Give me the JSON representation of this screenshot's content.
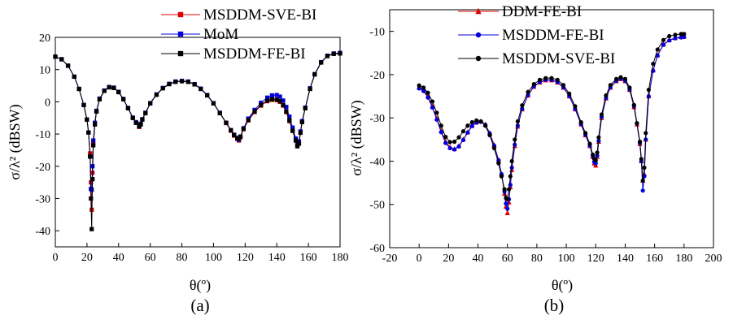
{
  "chart_data": [
    {
      "type": "scatter",
      "panel_label": "(a)",
      "xlabel": "θ(º)",
      "ylabel": "σ/λ² (dBSW)",
      "xlim": [
        0,
        180
      ],
      "ylim": [
        -45,
        20
      ],
      "xticks": [
        0,
        20,
        40,
        60,
        80,
        100,
        120,
        140,
        160,
        180
      ],
      "yticks": [
        -40,
        -30,
        -20,
        -10,
        0,
        10,
        20
      ],
      "legend_position": "top-center",
      "series": [
        {
          "name": "MSDDM-SVE-BI",
          "color": "#e00000",
          "marker": "square",
          "x": [
            0,
            4,
            8,
            12,
            15,
            18,
            20,
            21,
            22,
            22.5,
            23,
            23.5,
            24,
            25,
            26,
            28,
            31,
            34,
            37,
            40,
            43,
            46,
            49,
            51,
            53,
            54,
            55,
            57,
            60,
            64,
            68,
            72,
            76,
            80,
            84,
            88,
            92,
            96,
            100,
            104,
            108,
            111,
            113,
            115,
            116,
            117,
            119,
            122,
            126,
            130,
            134,
            137,
            140,
            142,
            144,
            146,
            148,
            150,
            152,
            153,
            154,
            155,
            156,
            158,
            161,
            164,
            168,
            172,
            176,
            180
          ],
          "y": [
            14,
            13.2,
            11.2,
            7.8,
            4,
            -1,
            -5.5,
            -9.5,
            -16,
            -25,
            -33.5,
            -22,
            -13,
            -7,
            -3,
            0.8,
            3.4,
            4.5,
            4.3,
            3,
            0.8,
            -2,
            -5,
            -6.5,
            -7.8,
            -7,
            -5.5,
            -3.5,
            -0.5,
            2.2,
            4.2,
            5.5,
            6.2,
            6.4,
            6.2,
            5.4,
            4,
            2,
            -0.5,
            -3.5,
            -6.6,
            -9,
            -10.5,
            -11.5,
            -12,
            -11,
            -8.5,
            -5.8,
            -3.2,
            -1.2,
            0.2,
            0.6,
            0.5,
            0,
            -1.2,
            -3.2,
            -6,
            -9,
            -12,
            -13.5,
            -12.8,
            -9.5,
            -6.3,
            -2,
            4,
            8.5,
            12.2,
            14.2,
            14.9,
            15
          ]
        },
        {
          "name": "MoM",
          "color": "#0000e0",
          "marker": "square",
          "x": [
            0,
            4,
            8,
            12,
            15,
            18,
            20,
            21,
            22,
            22.5,
            23,
            23.5,
            24,
            25,
            26,
            28,
            31,
            34,
            37,
            40,
            43,
            46,
            49,
            51,
            53,
            54,
            55,
            57,
            60,
            64,
            68,
            72,
            76,
            80,
            84,
            88,
            92,
            96,
            100,
            104,
            108,
            111,
            113,
            115,
            116,
            117,
            119,
            122,
            126,
            130,
            134,
            137,
            140,
            142,
            144,
            146,
            148,
            150,
            152,
            153,
            154,
            155,
            156,
            158,
            161,
            164,
            168,
            172,
            176,
            180
          ],
          "y": [
            14,
            13.2,
            11.2,
            7.8,
            4,
            -1,
            -5.5,
            -9.5,
            -17,
            -27,
            -27.3,
            -20,
            -12,
            -6.5,
            -2.8,
            1,
            3.5,
            4.6,
            4.4,
            3.1,
            0.9,
            -1.9,
            -4.9,
            -6.3,
            -7.3,
            -6.8,
            -5.4,
            -3.4,
            -0.4,
            2.3,
            4.3,
            5.6,
            6.3,
            6.5,
            6.3,
            5.5,
            4.1,
            2.1,
            -0.4,
            -3.4,
            -6.5,
            -8.8,
            -10.2,
            -11.2,
            -11.8,
            -10.8,
            -8.2,
            -5.2,
            -2.5,
            -0.3,
            1.3,
            2,
            2.1,
            1.6,
            0.4,
            -1.6,
            -4.6,
            -8,
            -11.4,
            -13,
            -12.3,
            -9.2,
            -6,
            -1.8,
            4.2,
            8.6,
            12.3,
            14.3,
            15,
            15.2
          ]
        },
        {
          "name": "MSDDM-FE-BI",
          "color": "#000000",
          "marker": "square",
          "x": [
            0,
            4,
            8,
            12,
            15,
            18,
            20,
            21,
            22,
            22.5,
            23,
            23.5,
            24,
            25,
            26,
            28,
            31,
            34,
            37,
            40,
            43,
            46,
            49,
            51,
            53,
            54,
            55,
            57,
            60,
            64,
            68,
            72,
            76,
            80,
            84,
            88,
            92,
            96,
            100,
            104,
            108,
            111,
            113,
            115,
            116,
            117,
            119,
            122,
            126,
            130,
            134,
            137,
            140,
            142,
            144,
            146,
            148,
            150,
            152,
            153,
            154,
            155,
            156,
            158,
            161,
            164,
            168,
            172,
            176,
            180
          ],
          "y": [
            14,
            13.2,
            11.2,
            7.8,
            4,
            -1,
            -5.5,
            -9.5,
            -17,
            -30,
            -39.5,
            -24,
            -13.5,
            -7,
            -3,
            0.8,
            3.4,
            4.5,
            4.3,
            3,
            0.8,
            -2,
            -5,
            -6.5,
            -7.6,
            -7,
            -5.5,
            -3.5,
            -0.5,
            2.2,
            4.2,
            5.5,
            6.2,
            6.4,
            6.2,
            5.4,
            4,
            2,
            -0.5,
            -3.5,
            -6.5,
            -8.8,
            -10.3,
            -11.3,
            -11.5,
            -10.8,
            -8.4,
            -5.6,
            -3,
            -1,
            0.4,
            0.8,
            0.7,
            0.2,
            -1,
            -3,
            -5.8,
            -9,
            -12,
            -13.8,
            -13,
            -9.6,
            -6.3,
            -2,
            4,
            8.5,
            12.2,
            14.2,
            14.9,
            15
          ]
        }
      ]
    },
    {
      "type": "scatter",
      "panel_label": "(b)",
      "xlabel": "θ(º)",
      "ylabel": "σ/λ² (dBSW)",
      "xlim": [
        -20,
        200
      ],
      "ylim": [
        -60,
        -5
      ],
      "xticks": [
        -20,
        0,
        20,
        40,
        60,
        80,
        100,
        120,
        140,
        160,
        180,
        200
      ],
      "yticks": [
        -60,
        -50,
        -40,
        -30,
        -20,
        -10
      ],
      "legend_position": "top-center",
      "series": [
        {
          "name": "DDM-FE-BI",
          "color": "#e00000",
          "marker": "triangle",
          "x": [
            0,
            3,
            6,
            9,
            12,
            15,
            18,
            21,
            24,
            27,
            30,
            33,
            36,
            39,
            42,
            45,
            48,
            51,
            54,
            56,
            58,
            59,
            60,
            61,
            62,
            63,
            65,
            67,
            70,
            74,
            78,
            82,
            86,
            90,
            94,
            98,
            102,
            106,
            110,
            113,
            116,
            118,
            119,
            120,
            121,
            122,
            124,
            127,
            130,
            134,
            137,
            140,
            143,
            146,
            148,
            150,
            151,
            152,
            153,
            154,
            156,
            159,
            162,
            166,
            170,
            174,
            178,
            180
          ],
          "y": [
            -23,
            -23.5,
            -25,
            -27.3,
            -30.1,
            -33,
            -35.5,
            -36.8,
            -37.2,
            -36.5,
            -35,
            -33.3,
            -31.8,
            -31,
            -30.8,
            -31.5,
            -33.5,
            -36.3,
            -39.8,
            -43,
            -47.5,
            -50.5,
            -52,
            -49.5,
            -46,
            -42,
            -36.5,
            -32,
            -28,
            -24.8,
            -22.8,
            -21.8,
            -21.3,
            -21.3,
            -21.8,
            -23,
            -25,
            -28,
            -31.5,
            -34,
            -36.5,
            -39,
            -40.5,
            -41,
            -39,
            -35.5,
            -30,
            -25.5,
            -23,
            -21.5,
            -21,
            -21.5,
            -23.5,
            -27.5,
            -31.5,
            -36,
            -40,
            -44.5,
            -43,
            -35,
            -25,
            -19,
            -15.5,
            -13,
            -12,
            -11.5,
            -11.3,
            -11.2
          ]
        },
        {
          "name": "MSDDM-FE-BI",
          "color": "#0000e0",
          "marker": "circle",
          "x": [
            0,
            3,
            6,
            9,
            12,
            15,
            18,
            21,
            24,
            27,
            30,
            33,
            36,
            39,
            42,
            45,
            48,
            51,
            54,
            56,
            58,
            59,
            60,
            61,
            62,
            63,
            65,
            67,
            70,
            74,
            78,
            82,
            86,
            90,
            94,
            98,
            102,
            106,
            110,
            113,
            116,
            118,
            119,
            120,
            121,
            122,
            124,
            127,
            130,
            134,
            137,
            140,
            143,
            146,
            148,
            150,
            151,
            152,
            153,
            154,
            156,
            159,
            162,
            166,
            170,
            174,
            178,
            180
          ],
          "y": [
            -23.2,
            -23.8,
            -25.3,
            -27.6,
            -30.4,
            -33.3,
            -35.8,
            -37,
            -37.3,
            -36.6,
            -35.1,
            -33.4,
            -31.9,
            -31.1,
            -30.9,
            -31.6,
            -33.6,
            -36.4,
            -39.8,
            -43,
            -47,
            -49.8,
            -51,
            -48.8,
            -45.5,
            -41.5,
            -36.2,
            -31.8,
            -27.9,
            -24.7,
            -22.7,
            -21.7,
            -21.2,
            -21.2,
            -21.7,
            -22.9,
            -24.9,
            -27.9,
            -31.4,
            -33.9,
            -36.4,
            -38.8,
            -40.2,
            -40.5,
            -38.7,
            -35.3,
            -29.8,
            -25.4,
            -22.9,
            -21.4,
            -20.9,
            -21.4,
            -23.4,
            -27.3,
            -31.3,
            -35.8,
            -40,
            -46.8,
            -43.5,
            -35,
            -25,
            -19.1,
            -15.6,
            -13.1,
            -12.1,
            -11.6,
            -11.4,
            -11.3
          ]
        },
        {
          "name": "MSDDM-SVE-BI",
          "color": "#000000",
          "marker": "circle",
          "x": [
            0,
            3,
            6,
            9,
            12,
            15,
            18,
            21,
            24,
            27,
            30,
            33,
            36,
            39,
            42,
            45,
            48,
            51,
            54,
            56,
            58,
            59,
            60,
            61,
            62,
            63,
            65,
            67,
            70,
            74,
            78,
            82,
            86,
            90,
            94,
            98,
            102,
            106,
            110,
            113,
            116,
            118,
            119,
            120,
            121,
            122,
            124,
            127,
            130,
            134,
            137,
            140,
            143,
            146,
            148,
            150,
            151,
            152,
            153,
            154,
            156,
            159,
            162,
            166,
            170,
            174,
            178,
            180
          ],
          "y": [
            -22.5,
            -23,
            -24.2,
            -26.2,
            -28.8,
            -31.8,
            -34.4,
            -35.6,
            -35.5,
            -34.5,
            -33.1,
            -31.8,
            -31,
            -30.6,
            -30.8,
            -31.8,
            -34,
            -37,
            -40.5,
            -43.5,
            -46.5,
            -48.5,
            -48.8,
            -46.5,
            -43.5,
            -40,
            -35,
            -30.8,
            -27.1,
            -24,
            -22.2,
            -21.2,
            -20.8,
            -20.8,
            -21.2,
            -22.4,
            -24.4,
            -27.3,
            -31,
            -33.5,
            -36,
            -38.5,
            -39.5,
            -39.8,
            -38,
            -34.5,
            -29.2,
            -24.8,
            -22.4,
            -21,
            -20.6,
            -21,
            -23,
            -27,
            -31.2,
            -35.5,
            -39.5,
            -44.5,
            -41.5,
            -33.5,
            -23.5,
            -17.5,
            -14.2,
            -12,
            -11.1,
            -10.8,
            -10.6,
            -10.6
          ]
        }
      ]
    }
  ]
}
